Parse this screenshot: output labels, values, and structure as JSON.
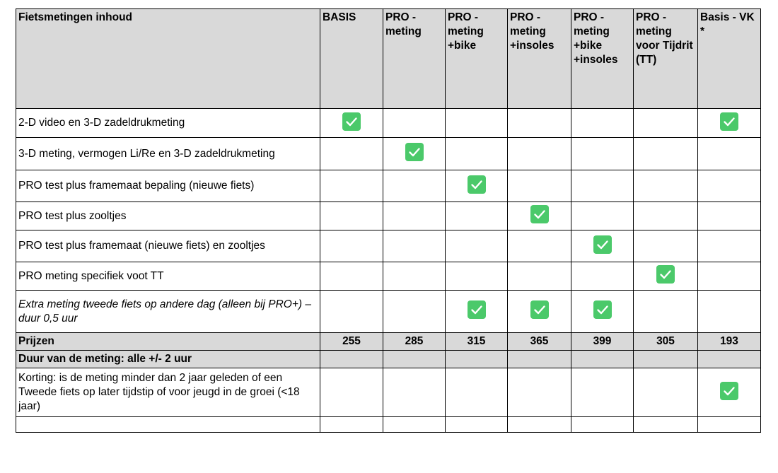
{
  "table": {
    "headers": [
      "Fietsmetingen inhoud",
      "BASIS",
      "PRO - meting",
      "PRO - meting +bike",
      "PRO - meting +insoles",
      "PRO - meting +bike +insoles",
      "PRO - meting voor Tijdrit (TT)",
      "Basis - VK  *"
    ],
    "rows": [
      {
        "label": "2-D video en 3-D zadeldrukmeting",
        "checks": [
          true,
          false,
          false,
          false,
          false,
          false,
          true
        ]
      },
      {
        "label": "3-D meting, vermogen Li/Re en 3-D zadeldrukmeting",
        "checks": [
          false,
          true,
          false,
          false,
          false,
          false,
          false
        ]
      },
      {
        "label": "PRO test plus framemaat bepaling (nieuwe fiets)",
        "checks": [
          false,
          false,
          true,
          false,
          false,
          false,
          false
        ]
      },
      {
        "label": "PRO test plus zooltjes",
        "checks": [
          false,
          false,
          false,
          true,
          false,
          false,
          false
        ]
      },
      {
        "label": "PRO test plus framemaat (nieuwe fiets) en zooltjes",
        "checks": [
          false,
          false,
          false,
          false,
          true,
          false,
          false
        ]
      },
      {
        "label": "PRO meting specifiek voot TT",
        "checks": [
          false,
          false,
          false,
          false,
          false,
          true,
          false
        ]
      },
      {
        "label": "Extra meting tweede fiets op andere dag (alleen bij PRO+) – duur 0,5 uur",
        "checks": [
          false,
          false,
          true,
          true,
          true,
          false,
          false
        ]
      }
    ],
    "prices": {
      "label": "Prijzen",
      "values": [
        "255",
        "285",
        "315",
        "365",
        "399",
        "305",
        "193"
      ]
    },
    "duration": {
      "label": "Duur van de meting: alle +/- 2 uur"
    },
    "discount": {
      "label": "Korting: is de meting minder dan 2 jaar geleden of een Tweede fiets op later tijdstip of voor jeugd in de groei (<18 jaar)",
      "checks": [
        false,
        false,
        false,
        false,
        false,
        false,
        true
      ]
    }
  },
  "colors": {
    "header_bg": "#d9d9d9",
    "check_green": "#4bc96a"
  },
  "icons": {
    "check": "checkbox-checked-icon"
  }
}
